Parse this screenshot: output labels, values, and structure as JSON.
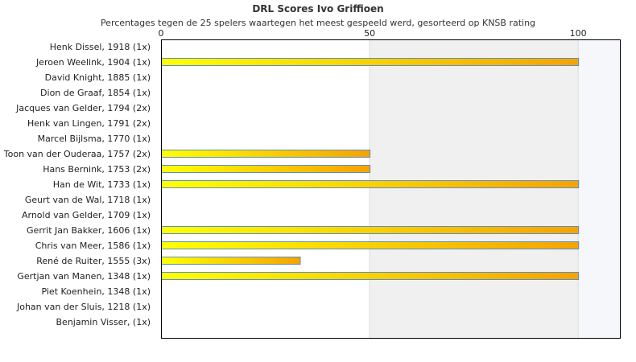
{
  "chart_data": {
    "type": "bar",
    "orientation": "horizontal",
    "title": "DRL Scores Ivo Griffioen",
    "subtitle": "Percentages tegen de 25 spelers waartegen het meest gespeeld werd, gesorteerd op KNSB rating",
    "categories": [
      "Henk Dissel, 1918 (1x)",
      "Jeroen Weelink, 1904 (1x)",
      "David Knight, 1885 (1x)",
      "Dion de Graaf, 1854 (1x)",
      "Jacques van Gelder, 1794 (2x)",
      "Henk van Lingen, 1791 (2x)",
      "Marcel Bijlsma, 1770 (1x)",
      "Toon van der Ouderaa, 1757 (2x)",
      "Hans Bernink, 1753 (2x)",
      "Han de Wit, 1733 (1x)",
      "Geurt van de Wal, 1718 (1x)",
      "Arnold van Gelder, 1709 (1x)",
      "Gerrit Jan Bakker, 1606 (1x)",
      "Chris van Meer, 1586 (1x)",
      "René de Ruiter, 1555 (3x)",
      "Gertjan van Manen, 1348 (1x)",
      "Piet Koenhein, 1348 (1x)",
      "Johan van der Sluis, 1218 (1x)",
      "Benjamin Visser,  (1x)"
    ],
    "values": [
      0,
      100,
      0,
      0,
      0,
      0,
      0,
      50,
      50,
      100,
      0,
      0,
      100,
      100,
      33.3,
      100,
      0,
      0,
      0
    ],
    "x_ticks": [
      "0",
      "50",
      "100"
    ],
    "xlim": [
      0,
      110
    ],
    "bar_gradient": [
      "#ffff00",
      "#f5a300"
    ],
    "bar_border": "#5b8fc7",
    "band_colors": [
      "#ffffff",
      "#f0f0f0",
      "#f5f7fa"
    ],
    "grid": true
  }
}
